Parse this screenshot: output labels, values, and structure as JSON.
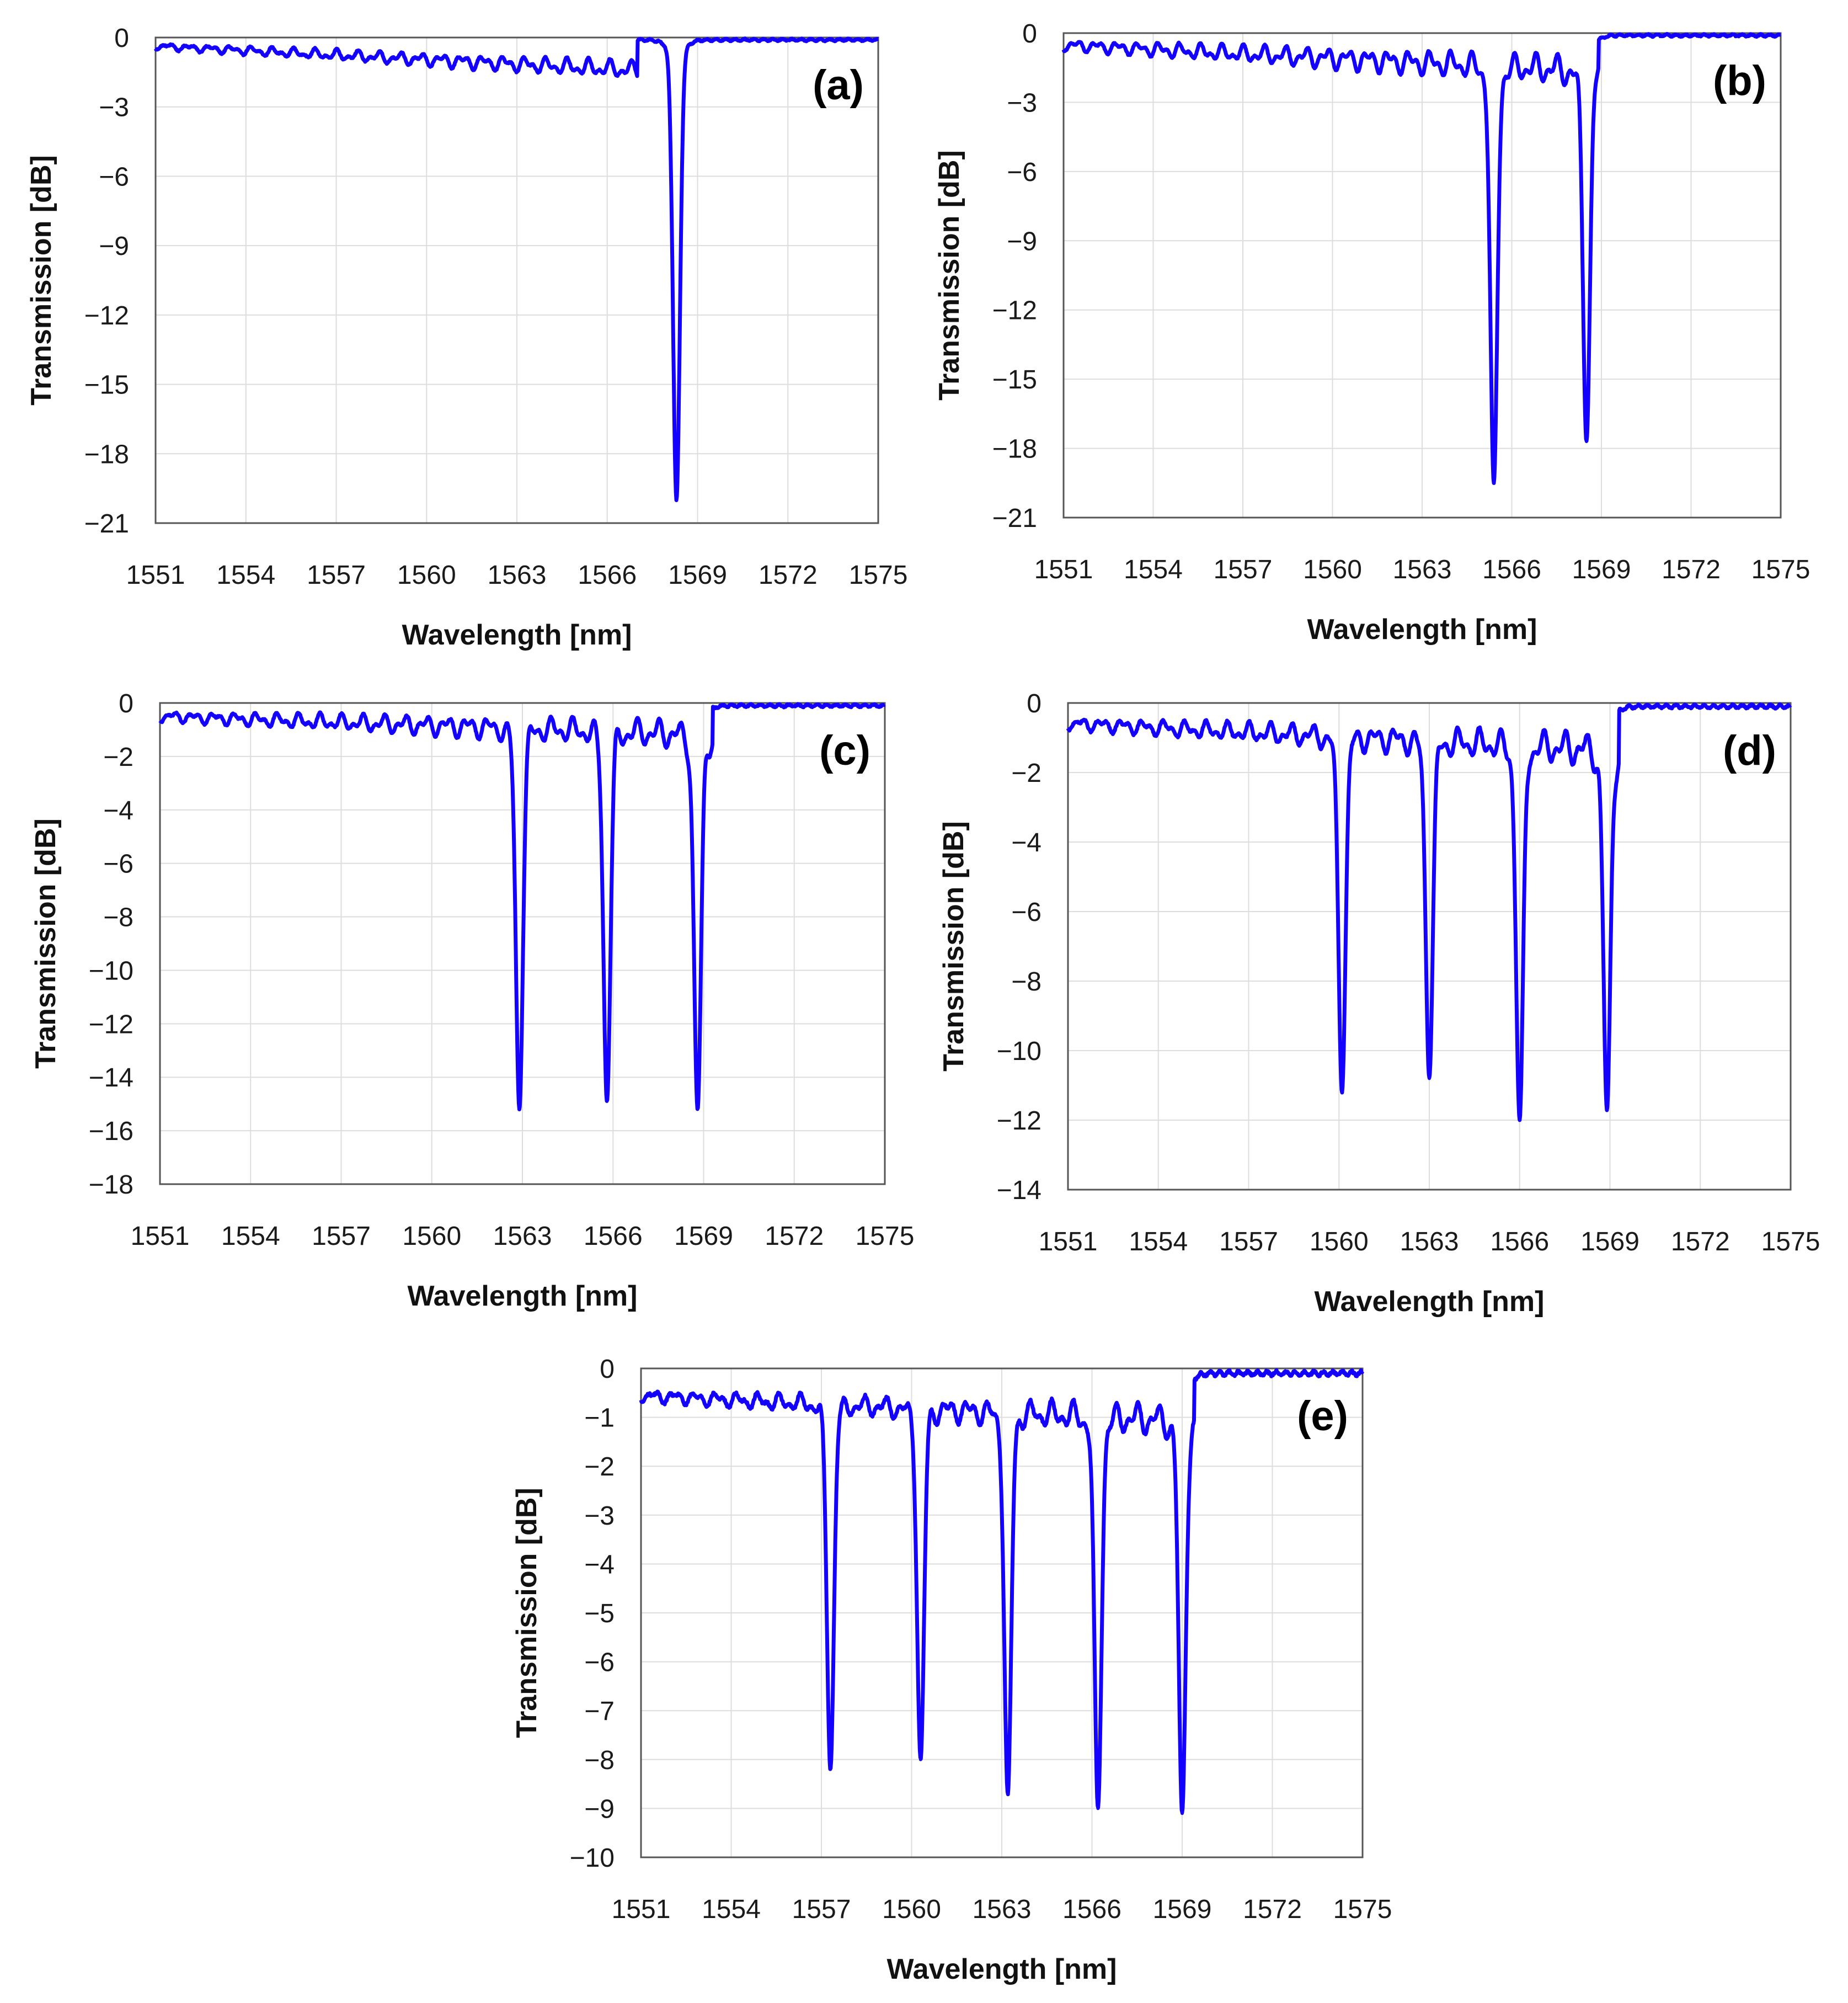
{
  "figure": {
    "line_color": "#1400ff",
    "grid_color": "#dddddd",
    "frame_color": "#555555"
  },
  "chart_data": [
    {
      "type": "line",
      "panel_label": "(a)",
      "xlabel": "Wavelength [nm]",
      "ylabel": "Transmission [dB]",
      "xlim": [
        1551,
        1575
      ],
      "ylim": [
        -21,
        0
      ],
      "xticks": [
        1551,
        1554,
        1557,
        1560,
        1563,
        1566,
        1569,
        1572,
        1575
      ],
      "yticks": [
        0,
        -3,
        -6,
        -9,
        -12,
        -15,
        -18,
        -21
      ],
      "baseline": {
        "ripple_start": -0.3,
        "ripple_end": -1.2,
        "ripple_amp": 0.35,
        "ripple_end_wl": 1567.0
      },
      "dips": [
        {
          "center": 1568.3,
          "depth": -20.0
        }
      ]
    },
    {
      "type": "line",
      "panel_label": "(b)",
      "xlabel": "Wavelength [nm]",
      "ylabel": "Transmission [dB]",
      "xlim": [
        1551,
        1575
      ],
      "ylim": [
        -21,
        0
      ],
      "xticks": [
        1551,
        1554,
        1557,
        1560,
        1563,
        1566,
        1569,
        1572,
        1575
      ],
      "yticks": [
        0,
        -3,
        -6,
        -9,
        -12,
        -15,
        -18,
        -21
      ],
      "baseline": {
        "ripple_start": -0.4,
        "ripple_end": -1.3,
        "ripple_amp": 0.6,
        "ripple_end_wl": 1568.9
      },
      "dips": [
        {
          "center": 1565.4,
          "depth": -19.5
        },
        {
          "center": 1568.5,
          "depth": -17.7
        }
      ]
    },
    {
      "type": "line",
      "panel_label": "(c)",
      "xlabel": "Wavelength [nm]",
      "ylabel": "Transmission [dB]",
      "xlim": [
        1551,
        1575
      ],
      "ylim": [
        -18,
        0
      ],
      "xticks": [
        1551,
        1554,
        1557,
        1560,
        1563,
        1566,
        1569,
        1572,
        1575
      ],
      "yticks": [
        0,
        -2,
        -4,
        -6,
        -8,
        -10,
        -12,
        -14,
        -16,
        -18
      ],
      "baseline": {
        "ripple_start": -0.4,
        "ripple_end": -0.9,
        "ripple_amp": 0.5,
        "ripple_end_wl": 1569.3
      },
      "dips": [
        {
          "center": 1562.9,
          "depth": -15.2
        },
        {
          "center": 1565.8,
          "depth": -14.9
        },
        {
          "center": 1568.8,
          "depth": -15.2
        }
      ]
    },
    {
      "type": "line",
      "panel_label": "(d)",
      "xlabel": "Wavelength [nm]",
      "ylabel": "Transmission [dB]",
      "xlim": [
        1551,
        1575
      ],
      "ylim": [
        -14,
        0
      ],
      "xticks": [
        1551,
        1554,
        1557,
        1560,
        1563,
        1566,
        1569,
        1572,
        1575
      ],
      "yticks": [
        0,
        -2,
        -4,
        -6,
        -8,
        -10,
        -12,
        -14
      ],
      "baseline": {
        "ripple_start": -0.5,
        "ripple_end": -1.1,
        "ripple_amp": 0.45,
        "ripple_end_wl": 1569.3
      },
      "dips": [
        {
          "center": 1560.1,
          "depth": -11.2
        },
        {
          "center": 1563.0,
          "depth": -10.8
        },
        {
          "center": 1566.0,
          "depth": -12.0
        },
        {
          "center": 1568.9,
          "depth": -11.7
        }
      ]
    },
    {
      "type": "line",
      "panel_label": "(e)",
      "xlabel": "Wavelength [nm]",
      "ylabel": "Transmission [dB]",
      "xlim": [
        1551,
        1575
      ],
      "ylim": [
        -10,
        0
      ],
      "xticks": [
        1551,
        1554,
        1557,
        1560,
        1563,
        1566,
        1569,
        1572,
        1575
      ],
      "yticks": [
        0,
        -1,
        -2,
        -3,
        -4,
        -5,
        -6,
        -7,
        -8,
        -9,
        -10
      ],
      "baseline": {
        "ripple_start": -0.5,
        "ripple_end": -0.9,
        "ripple_amp": 0.3,
        "ripple_end_wl": 1569.4
      },
      "dips": [
        {
          "center": 1557.3,
          "depth": -8.2
        },
        {
          "center": 1560.3,
          "depth": -8.0
        },
        {
          "center": 1563.2,
          "depth": -8.7
        },
        {
          "center": 1566.2,
          "depth": -9.0
        },
        {
          "center": 1569.0,
          "depth": -9.1
        }
      ]
    }
  ]
}
